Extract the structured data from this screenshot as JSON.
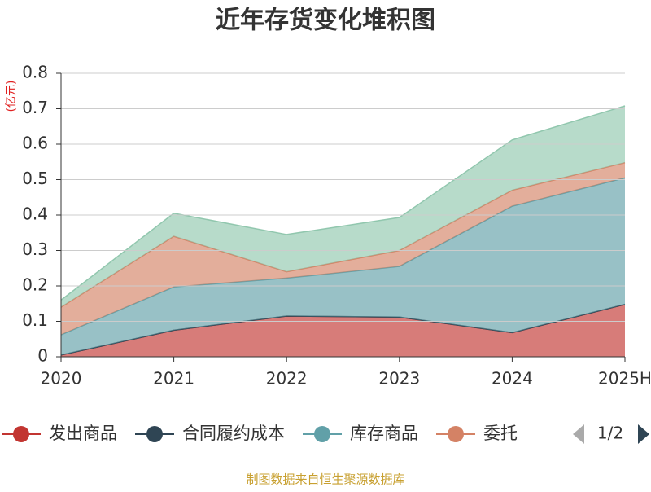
{
  "chart_data": {
    "type": "stacked_area",
    "title": "近年存货变化堆积图",
    "y_unit": "(亿元)",
    "categories": [
      "2020",
      "2021",
      "2022",
      "2023",
      "2024",
      "2025H"
    ],
    "series": [
      {
        "name": "发出商品",
        "color": "#c23531",
        "values": [
          0.005,
          0.075,
          0.115,
          0.112,
          0.068,
          0.148
        ]
      },
      {
        "name": "合同履约成本",
        "color": "#2f4554",
        "values": [
          0,
          0,
          0,
          0,
          0,
          0
        ]
      },
      {
        "name": "库存商品",
        "color": "#61a0a8",
        "values": [
          0.057,
          0.122,
          0.107,
          0.143,
          0.357,
          0.357
        ]
      },
      {
        "name": "委托",
        "color": "#d48265",
        "values": [
          0.078,
          0.143,
          0.018,
          0.045,
          0.045,
          0.043
        ]
      },
      {
        "name": null,
        "color": "#91c7ae",
        "values": [
          0.02,
          0.065,
          0.105,
          0.093,
          0.142,
          0.16
        ]
      }
    ],
    "ylim": [
      0,
      0.8
    ],
    "yticks": [
      0,
      0.1,
      0.2,
      0.3,
      0.4,
      0.5,
      0.6,
      0.7,
      0.8
    ],
    "grid": true,
    "legend_page": "1/2",
    "source": "制图数据来自恒生聚源数据库"
  }
}
